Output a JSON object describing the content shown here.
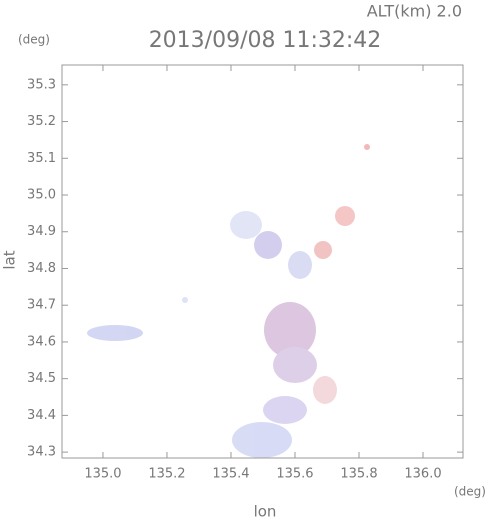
{
  "chart_data": {
    "type": "map",
    "title": "2013/09/08 11:32:42",
    "subtitle": "ALT(km) 2.0",
    "x_label": "lon",
    "y_label": "lat",
    "x_unit": "(deg)",
    "y_unit": "(deg)",
    "xlim": [
      134.872,
      136.125
    ],
    "ylim": [
      34.284,
      35.354
    ],
    "xticks": [
      {
        "value": 135,
        "label": "135.0"
      },
      135.2,
      135.4,
      135.6,
      135.8,
      {
        "value": 136,
        "label": "136.0"
      }
    ],
    "yticks": [
      34.3,
      34.4,
      34.5,
      34.6,
      34.7,
      34.8,
      34.9,
      {
        "value": 35,
        "label": "35.0"
      },
      35.1,
      35.2,
      35.3
    ]
  }
}
